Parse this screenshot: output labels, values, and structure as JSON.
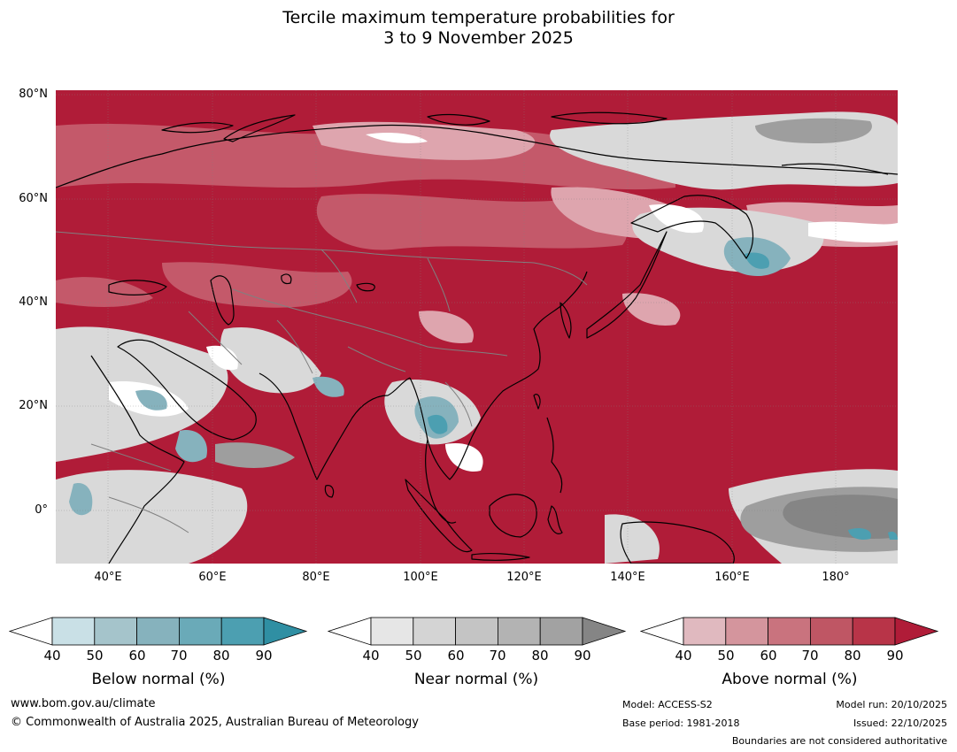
{
  "title": {
    "line1": "Tercile maximum temperature probabilities for",
    "line2": "3 to 9 November 2025"
  },
  "map": {
    "lat_labels": [
      "80°N",
      "60°N",
      "40°N",
      "20°N",
      "0°"
    ],
    "lon_labels": [
      "40°E",
      "60°E",
      "80°E",
      "100°E",
      "120°E",
      "140°E",
      "160°E",
      "180°"
    ],
    "extent": {
      "lon": [
        30,
        192
      ],
      "lat": [
        -10,
        80
      ]
    }
  },
  "legend": {
    "below": {
      "label": "Below normal (%)",
      "ticks": [
        "40",
        "50",
        "60",
        "70",
        "80",
        "90"
      ],
      "colors": [
        "#c9e0e6",
        "#a5c4cb",
        "#86b2bd",
        "#6aaab8",
        "#4c9fb1",
        "#2f8fa3"
      ]
    },
    "near": {
      "label": "Near normal (%)",
      "ticks": [
        "40",
        "50",
        "60",
        "70",
        "80",
        "90"
      ],
      "colors": [
        "#e6e6e6",
        "#d4d4d4",
        "#c4c4c4",
        "#b3b3b3",
        "#a2a2a2",
        "#858585"
      ]
    },
    "above": {
      "label": "Above normal (%)",
      "ticks": [
        "40",
        "50",
        "60",
        "70",
        "80",
        "90"
      ],
      "colors": [
        "#e0b9bf",
        "#d4959d",
        "#c9737e",
        "#bf5664",
        "#b83448",
        "#b01c38"
      ]
    }
  },
  "footer": {
    "url": "www.bom.gov.au/climate",
    "copyright": "© Commonwealth of Australia 2025, Australian Bureau of Meteorology",
    "model": "Model: ACCESS-S2",
    "base_period": "Base period: 1981-2018",
    "model_run": "Model run: 20/10/2025",
    "issued": "Issued: 22/10/2025",
    "disclaimer": "Boundaries are not considered authoritative"
  }
}
